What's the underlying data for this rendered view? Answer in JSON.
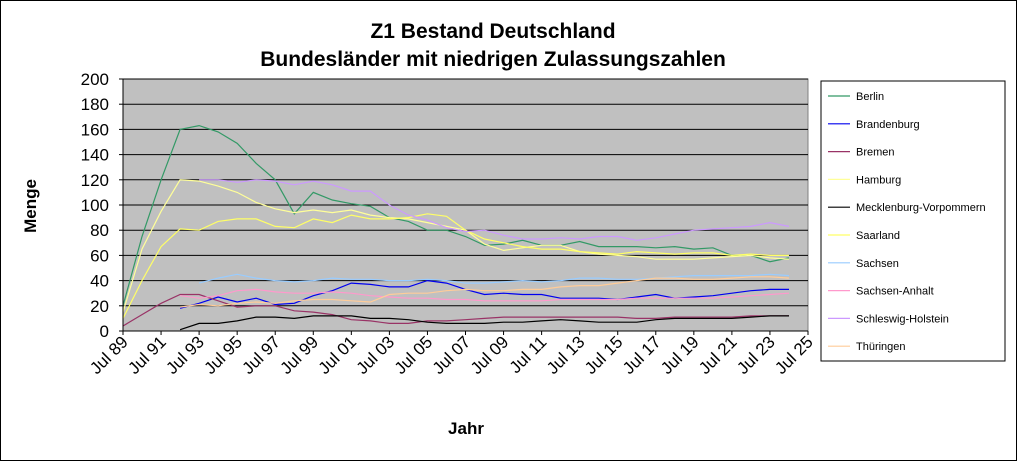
{
  "chart_data": {
    "type": "line",
    "title_lines": [
      "Z1 Bestand Deutschland",
      "Bundesländer mit niedrigen Zulassungszahlen"
    ],
    "xlabel": "Jahr",
    "ylabel": "Menge",
    "ylim": [
      0,
      200
    ],
    "y_ticks": [
      0,
      20,
      40,
      60,
      80,
      100,
      120,
      140,
      160,
      180,
      200
    ],
    "xlim": [
      1989,
      2025
    ],
    "x_ticks": [
      1989,
      1991,
      1993,
      1995,
      1997,
      1999,
      2001,
      2003,
      2005,
      2007,
      2009,
      2011,
      2013,
      2015,
      2017,
      2019,
      2021,
      2023,
      2025
    ],
    "x_tick_labels": [
      "Jul 89",
      "Jul 91",
      "Jul 93",
      "Jul 95",
      "Jul 97",
      "Jul 99",
      "Jul 01",
      "Jul 03",
      "Jul 05",
      "Jul 07",
      "Jul 09",
      "Jul 11",
      "Jul 13",
      "Jul 15",
      "Jul 17",
      "Jul 19",
      "Jul 21",
      "Jul 23",
      "Jul 25"
    ],
    "grid": true,
    "legend_position": "right",
    "plot_background": "#c0c0c0",
    "series": [
      {
        "name": "Berlin",
        "color": "#339966",
        "x": [
          1989,
          1990,
          1991,
          1992,
          1993,
          1994,
          1995,
          1996,
          1997,
          1998,
          1999,
          2000,
          2001,
          2002,
          2003,
          2004,
          2005,
          2006,
          2007,
          2008,
          2009,
          2010,
          2011,
          2012,
          2013,
          2014,
          2015,
          2016,
          2017,
          2018,
          2019,
          2020,
          2021,
          2022,
          2023,
          2024
        ],
        "y": [
          20,
          75,
          120,
          160,
          163,
          158,
          149,
          133,
          120,
          93,
          110,
          104,
          101,
          99,
          90,
          87,
          80,
          80,
          75,
          68,
          69,
          72,
          68,
          68,
          71,
          67,
          67,
          67,
          66,
          67,
          65,
          66,
          60,
          60,
          55,
          58
        ]
      },
      {
        "name": "Brandenburg",
        "color": "#0000ee",
        "x": [
          1992,
          1993,
          1994,
          1995,
          1996,
          1997,
          1998,
          1999,
          2000,
          2001,
          2002,
          2003,
          2004,
          2005,
          2006,
          2007,
          2008,
          2009,
          2010,
          2011,
          2012,
          2013,
          2014,
          2015,
          2016,
          2017,
          2018,
          2019,
          2020,
          2021,
          2022,
          2023,
          2024
        ],
        "y": [
          18,
          22,
          27,
          23,
          26,
          21,
          22,
          28,
          32,
          38,
          37,
          35,
          35,
          40,
          38,
          33,
          29,
          30,
          29,
          29,
          26,
          26,
          26,
          25,
          27,
          29,
          26,
          27,
          28,
          30,
          32,
          33,
          33
        ]
      },
      {
        "name": "Bremen",
        "color": "#993366",
        "x": [
          1989,
          1990,
          1991,
          1992,
          1993,
          1994,
          1995,
          1996,
          1997,
          1998,
          1999,
          2000,
          2001,
          2002,
          2003,
          2004,
          2005,
          2006,
          2007,
          2008,
          2009,
          2010,
          2011,
          2012,
          2013,
          2014,
          2015,
          2016,
          2017,
          2018,
          2019,
          2020,
          2021,
          2022,
          2023,
          2024
        ],
        "y": [
          4,
          13,
          22,
          29,
          29,
          24,
          19,
          20,
          20,
          16,
          15,
          13,
          9,
          8,
          6,
          6,
          8,
          8,
          9,
          10,
          11,
          11,
          11,
          11,
          11,
          11,
          11,
          10,
          10,
          11,
          11,
          11,
          11,
          12,
          12,
          12
        ]
      },
      {
        "name": "Hamburg",
        "color": "#ffff99",
        "x": [
          1989,
          1990,
          1991,
          1992,
          1993,
          1994,
          1995,
          1996,
          1997,
          1998,
          1999,
          2000,
          2001,
          2002,
          2003,
          2004,
          2005,
          2006,
          2007,
          2008,
          2009,
          2010,
          2011,
          2012,
          2013,
          2014,
          2015,
          2016,
          2017,
          2018,
          2019,
          2020,
          2021,
          2022,
          2023,
          2024
        ],
        "y": [
          15,
          65,
          95,
          120,
          119,
          115,
          110,
          102,
          97,
          94,
          96,
          94,
          96,
          92,
          90,
          89,
          86,
          83,
          80,
          69,
          64,
          66,
          68,
          68,
          63,
          61,
          60,
          59,
          57,
          57,
          57,
          58,
          59,
          60,
          58,
          57
        ]
      },
      {
        "name": "Mecklenburg-Vorpommern",
        "color": "#000000",
        "x": [
          1992,
          1993,
          1994,
          1995,
          1996,
          1997,
          1998,
          1999,
          2000,
          2001,
          2002,
          2003,
          2004,
          2005,
          2006,
          2007,
          2008,
          2009,
          2010,
          2011,
          2012,
          2013,
          2014,
          2015,
          2016,
          2017,
          2018,
          2019,
          2020,
          2021,
          2022,
          2023,
          2024
        ],
        "y": [
          1,
          6,
          6,
          8,
          11,
          11,
          10,
          12,
          12,
          12,
          10,
          10,
          9,
          7,
          6,
          6,
          6,
          7,
          7,
          8,
          9,
          8,
          7,
          7,
          7,
          9,
          10,
          10,
          10,
          10,
          11,
          12,
          12
        ]
      },
      {
        "name": "Saarland",
        "color": "#ffff66",
        "x": [
          1989,
          1990,
          1991,
          1992,
          1993,
          1994,
          1995,
          1996,
          1997,
          1998,
          1999,
          2000,
          2001,
          2002,
          2003,
          2004,
          2005,
          2006,
          2007,
          2008,
          2009,
          2010,
          2011,
          2012,
          2013,
          2014,
          2015,
          2016,
          2017,
          2018,
          2019,
          2020,
          2021,
          2022,
          2023,
          2024
        ],
        "y": [
          10,
          40,
          67,
          81,
          80,
          87,
          89,
          89,
          83,
          82,
          89,
          86,
          92,
          89,
          89,
          90,
          93,
          91,
          80,
          73,
          70,
          67,
          65,
          65,
          63,
          62,
          61,
          63,
          62,
          61,
          62,
          62,
          60,
          61,
          60,
          60
        ]
      },
      {
        "name": "Sachsen",
        "color": "#99ccff",
        "x": [
          1993,
          1994,
          1995,
          1996,
          1997,
          1998,
          1999,
          2000,
          2001,
          2002,
          2003,
          2004,
          2005,
          2006,
          2007,
          2008,
          2009,
          2010,
          2011,
          2012,
          2013,
          2014,
          2015,
          2016,
          2017,
          2018,
          2019,
          2020,
          2021,
          2022,
          2023,
          2024
        ],
        "y": [
          38,
          42,
          45,
          42,
          40,
          39,
          40,
          42,
          41,
          41,
          40,
          40,
          41,
          40,
          38,
          38,
          39,
          40,
          39,
          40,
          42,
          42,
          41,
          41,
          42,
          43,
          44,
          44,
          44,
          44,
          45,
          44
        ]
      },
      {
        "name": "Sachsen-Anhalt",
        "color": "#ff99cc",
        "x": [
          1992,
          1993,
          1994,
          1995,
          1996,
          1997,
          1998,
          1999,
          2000,
          2001,
          2002,
          2003,
          2004,
          2005,
          2006,
          2007,
          2008,
          2009,
          2010,
          2011,
          2012,
          2013,
          2014,
          2015,
          2016,
          2017,
          2018,
          2019,
          2020,
          2021,
          2022,
          2023,
          2024
        ],
        "y": [
          28,
          26,
          28,
          32,
          33,
          31,
          30,
          30,
          31,
          30,
          28,
          27,
          26,
          26,
          25,
          25,
          24,
          24,
          24,
          24,
          25,
          25,
          25,
          25,
          26,
          26,
          26,
          26,
          26,
          27,
          28,
          29,
          30
        ]
      },
      {
        "name": "Schleswig-Holstein",
        "color": "#cc99ff",
        "x": [
          1993,
          1994,
          1995,
          1996,
          1997,
          1998,
          1999,
          2000,
          2001,
          2002,
          2003,
          2004,
          2005,
          2006,
          2007,
          2008,
          2009,
          2010,
          2011,
          2012,
          2013,
          2014,
          2015,
          2016,
          2017,
          2018,
          2019,
          2020,
          2021,
          2022,
          2023,
          2024
        ],
        "y": [
          120,
          120,
          118,
          120,
          119,
          116,
          119,
          116,
          111,
          111,
          100,
          92,
          88,
          82,
          79,
          80,
          76,
          73,
          73,
          74,
          73,
          75,
          75,
          72,
          74,
          77,
          80,
          81,
          82,
          83,
          86,
          83
        ]
      },
      {
        "name": "Thüringen",
        "color": "#ffcc99",
        "x": [
          1992,
          1993,
          1994,
          1995,
          1996,
          1997,
          1998,
          1999,
          2000,
          2001,
          2002,
          2003,
          2004,
          2005,
          2006,
          2007,
          2008,
          2009,
          2010,
          2011,
          2012,
          2013,
          2014,
          2015,
          2016,
          2017,
          2018,
          2019,
          2020,
          2021,
          2022,
          2023,
          2024
        ],
        "y": [
          19,
          21,
          20,
          22,
          23,
          22,
          24,
          25,
          25,
          24,
          23,
          29,
          30,
          30,
          32,
          33,
          32,
          32,
          33,
          33,
          35,
          36,
          36,
          38,
          40,
          42,
          42,
          41,
          41,
          42,
          43,
          43,
          42
        ]
      }
    ]
  }
}
